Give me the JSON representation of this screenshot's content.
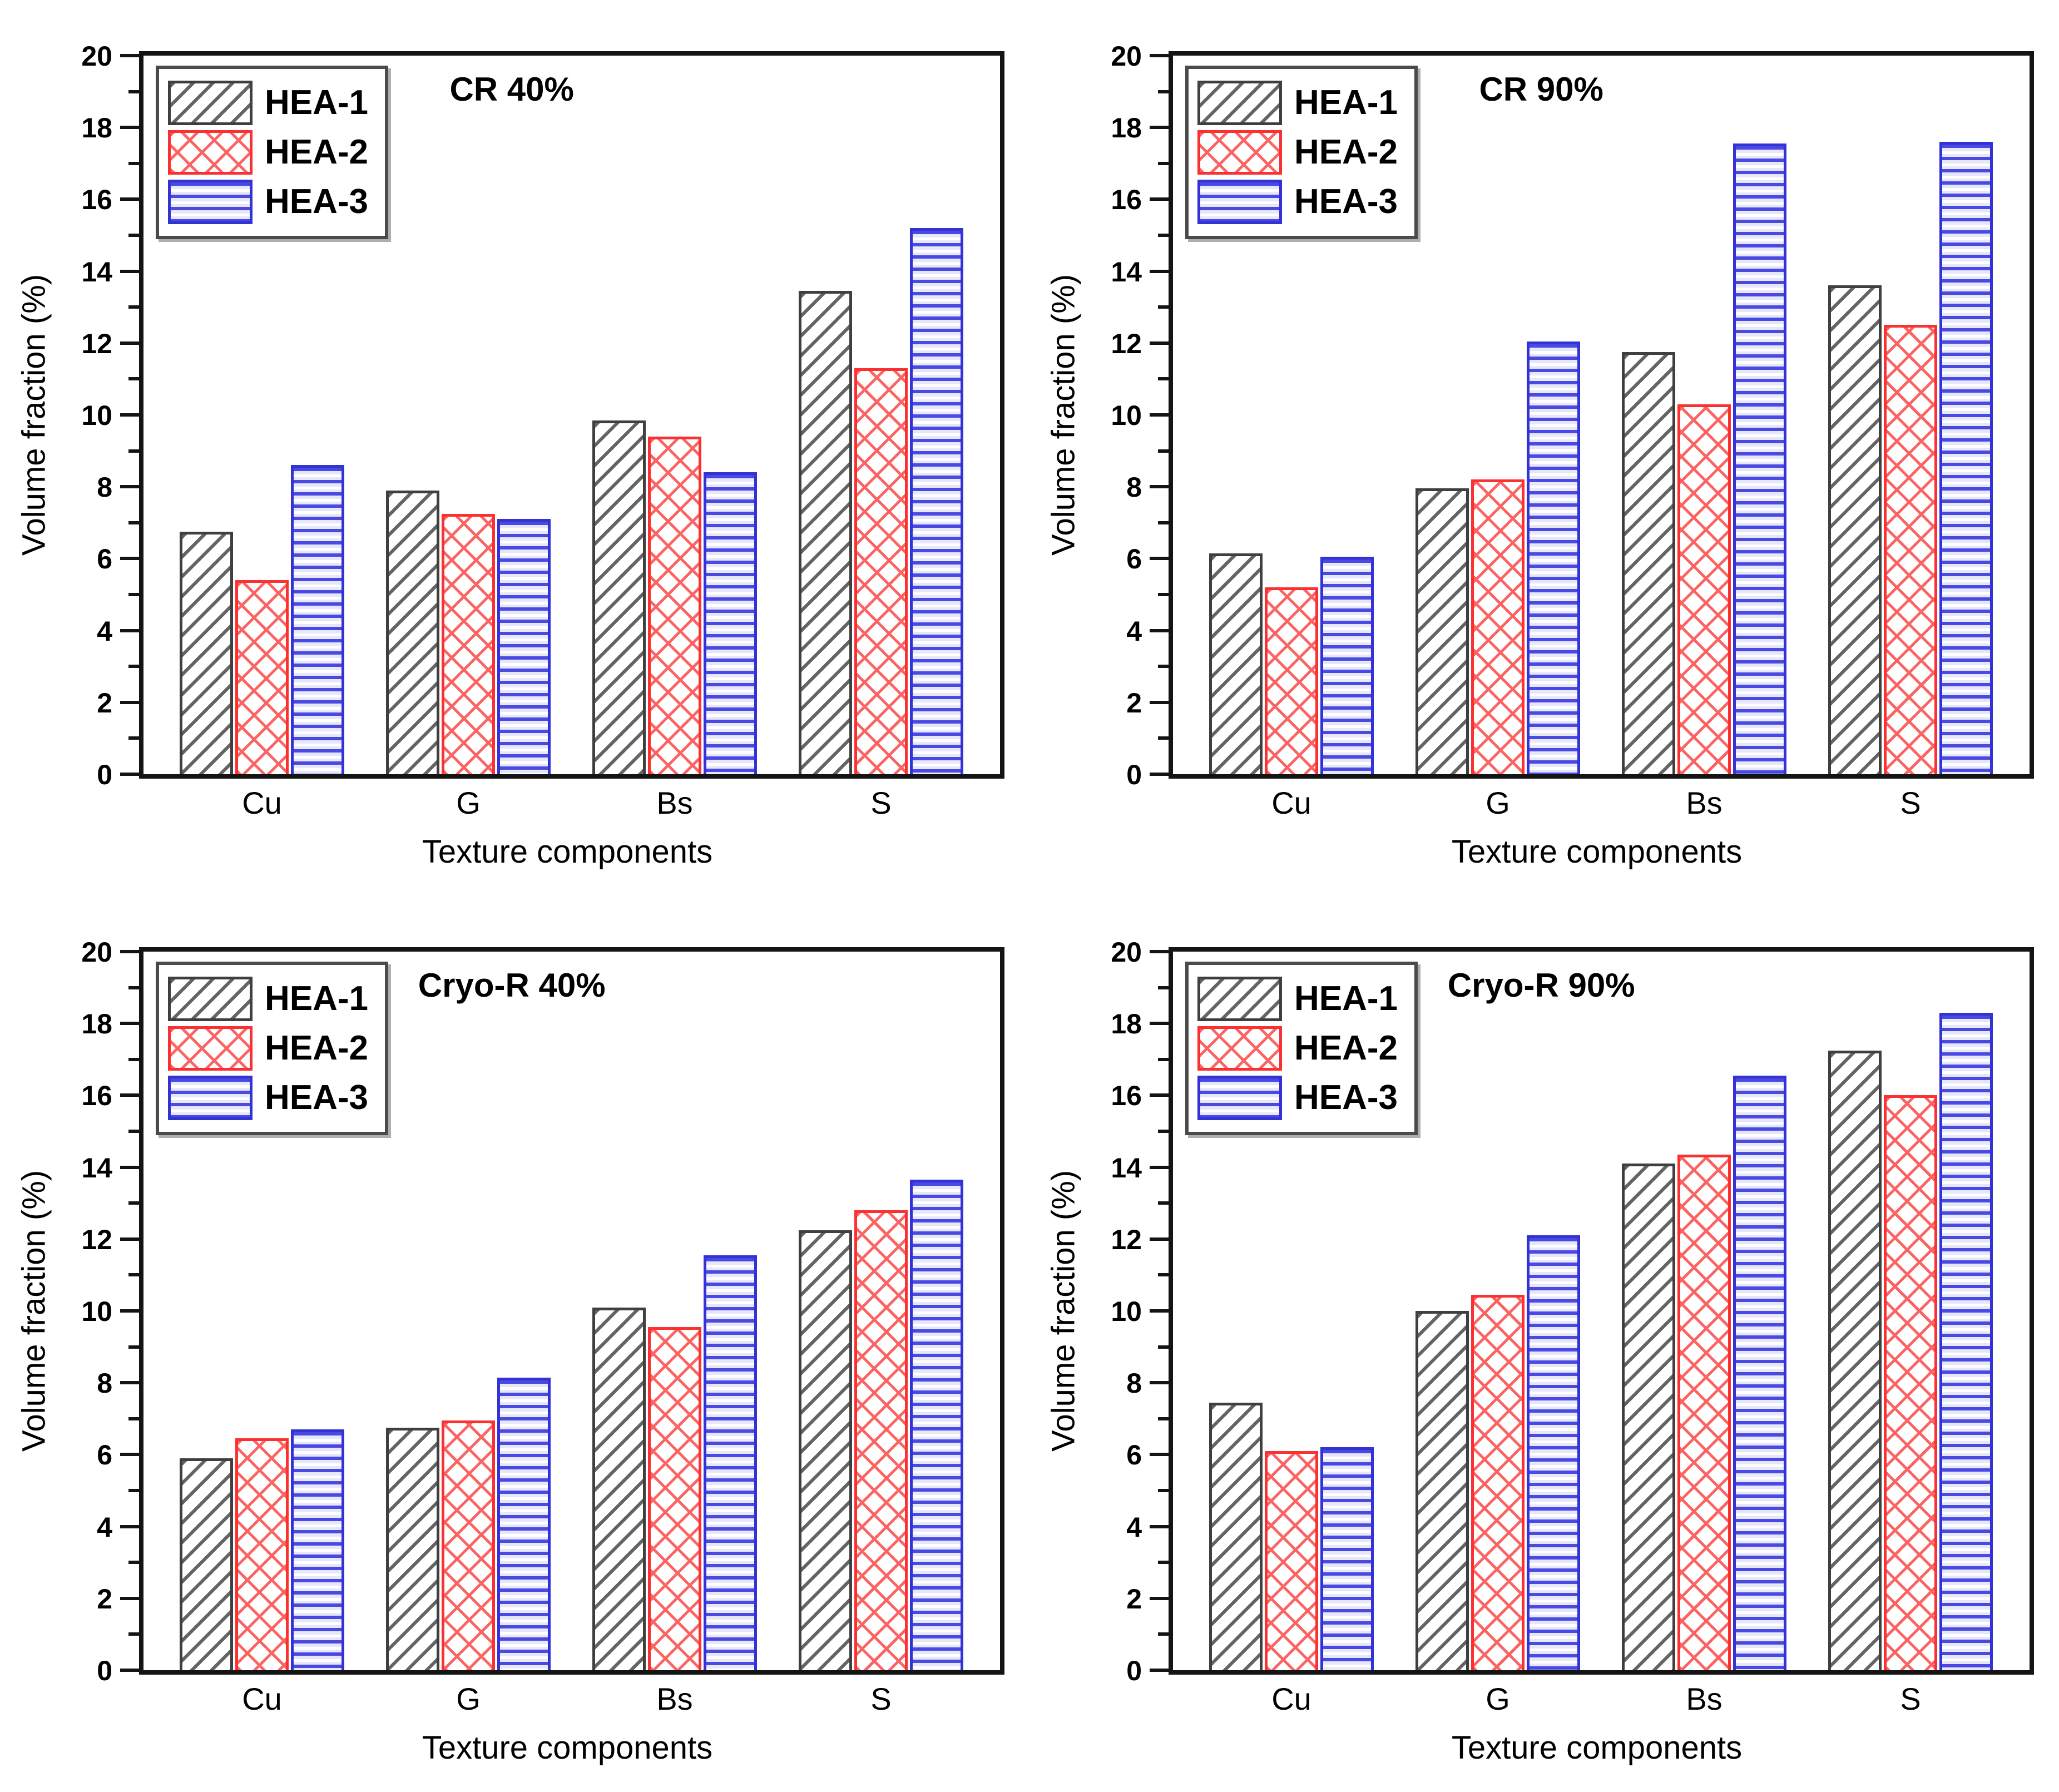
{
  "figure": {
    "layout": "2x2 grouped bar charts",
    "background": "#ffffff",
    "axis_color": "#141414",
    "text_color": "#000000"
  },
  "series_styles": [
    {
      "name": "HEA-1",
      "edge_color": "#3f3f3f",
      "hatch": "diagonal-forward",
      "hatch_color": "#646464",
      "fill": "#ffffff"
    },
    {
      "name": "HEA-2",
      "edge_color": "#fb3030",
      "hatch": "diagonal-cross",
      "hatch_color": "#fc6363",
      "fill": "#ffffff"
    },
    {
      "name": "HEA-3",
      "edge_color": "#3232d6",
      "hatch": "horizontal",
      "hatch_color": "#4a4ae2",
      "fill": "#e7e7fb"
    }
  ],
  "chart_data": [
    {
      "type": "bar",
      "title": "CR 40%",
      "xlabel": "Texture components",
      "ylabel": "Volume fraction (%)",
      "ylim": [
        0,
        20
      ],
      "ytick_step": 2,
      "minor_tick_step": 1,
      "ytick_labels": [
        "0",
        "2",
        "4",
        "6",
        "8",
        "10",
        "12",
        "14",
        "16",
        "18",
        "20"
      ],
      "grid": false,
      "legend_position": "top-left",
      "categories": [
        "Cu",
        "G",
        "Bs",
        "S"
      ],
      "series": [
        {
          "name": "HEA-1",
          "values": [
            6.75,
            7.9,
            9.85,
            13.45
          ]
        },
        {
          "name": "HEA-2",
          "values": [
            5.4,
            7.25,
            9.4,
            11.3
          ]
        },
        {
          "name": "HEA-3",
          "values": [
            8.6,
            7.1,
            8.4,
            15.2
          ]
        }
      ]
    },
    {
      "type": "bar",
      "title": "CR 90%",
      "xlabel": "Texture components",
      "ylabel": "Volume fraction (%)",
      "ylim": [
        0,
        20
      ],
      "ytick_step": 2,
      "minor_tick_step": 1,
      "ytick_labels": [
        "0",
        "2",
        "4",
        "6",
        "8",
        "10",
        "12",
        "14",
        "16",
        "18",
        "20"
      ],
      "grid": false,
      "legend_position": "top-left",
      "categories": [
        "Cu",
        "G",
        "Bs",
        "S"
      ],
      "series": [
        {
          "name": "HEA-1",
          "values": [
            6.15,
            7.95,
            11.75,
            13.6
          ]
        },
        {
          "name": "HEA-2",
          "values": [
            5.2,
            8.2,
            10.3,
            12.5
          ]
        },
        {
          "name": "HEA-3",
          "values": [
            6.05,
            12.05,
            17.55,
            17.6
          ]
        }
      ]
    },
    {
      "type": "bar",
      "title": "Cryo-R 40%",
      "xlabel": "Texture components",
      "ylabel": "Volume fraction (%)",
      "ylim": [
        0,
        20
      ],
      "ytick_step": 2,
      "minor_tick_step": 1,
      "ytick_labels": [
        "0",
        "2",
        "4",
        "6",
        "8",
        "10",
        "12",
        "14",
        "16",
        "18",
        "20"
      ],
      "grid": false,
      "legend_position": "top-left",
      "categories": [
        "Cu",
        "G",
        "Bs",
        "S"
      ],
      "series": [
        {
          "name": "HEA-1",
          "values": [
            5.9,
            6.75,
            10.1,
            12.25
          ]
        },
        {
          "name": "HEA-2",
          "values": [
            6.45,
            6.95,
            9.55,
            12.8
          ]
        },
        {
          "name": "HEA-3",
          "values": [
            6.7,
            8.15,
            11.55,
            13.65
          ]
        }
      ]
    },
    {
      "type": "bar",
      "title": "Cryo-R 90%",
      "xlabel": "Texture components",
      "ylabel": "Volume fraction (%)",
      "ylim": [
        0,
        20
      ],
      "ytick_step": 2,
      "minor_tick_step": 1,
      "ytick_labels": [
        "0",
        "2",
        "4",
        "6",
        "8",
        "10",
        "12",
        "14",
        "16",
        "18",
        "20"
      ],
      "grid": false,
      "legend_position": "top-left",
      "categories": [
        "Cu",
        "G",
        "Bs",
        "S"
      ],
      "series": [
        {
          "name": "HEA-1",
          "values": [
            7.45,
            10.0,
            14.1,
            17.25
          ]
        },
        {
          "name": "HEA-2",
          "values": [
            6.1,
            10.45,
            14.35,
            16.0
          ]
        },
        {
          "name": "HEA-3",
          "values": [
            6.2,
            12.1,
            16.55,
            18.3
          ]
        }
      ]
    }
  ]
}
